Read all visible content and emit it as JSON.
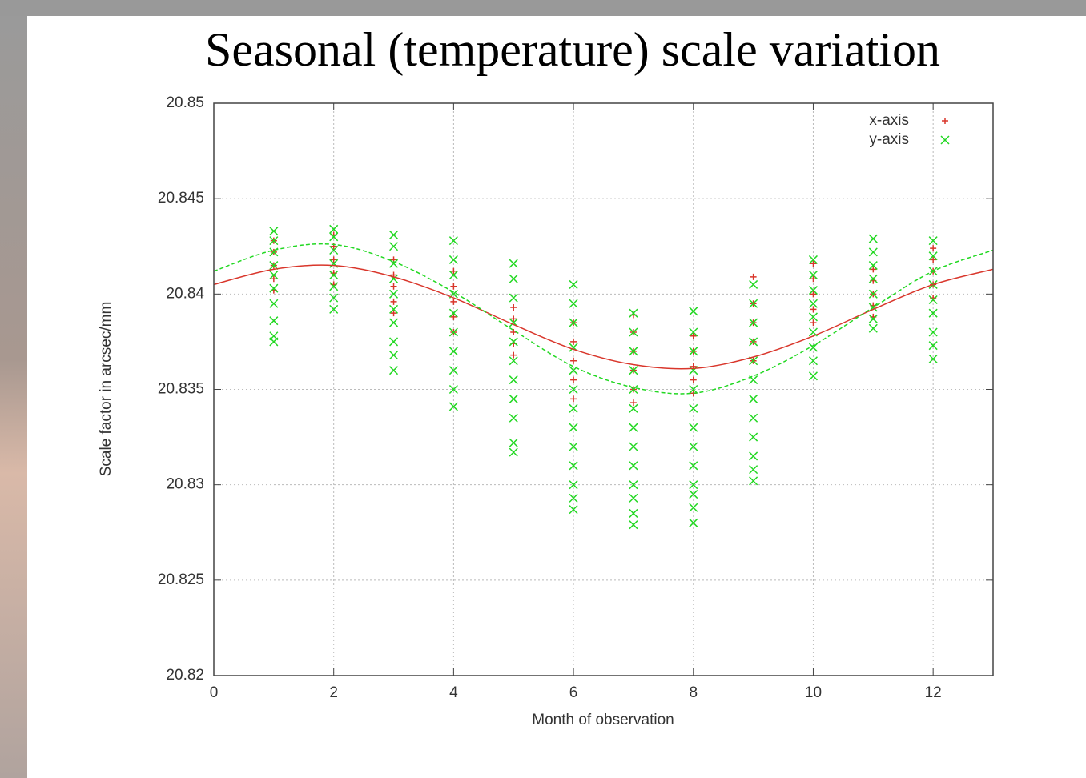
{
  "chart_data": {
    "type": "scatter",
    "title": "Seasonal (temperature) scale variation",
    "x_label": "Month of observation",
    "y_label": "Scale factor in arcsec/mm",
    "xlim": [
      0,
      13
    ],
    "xticks": [
      0,
      2,
      4,
      6,
      8,
      10,
      12
    ],
    "ylim": [
      20.82,
      20.85
    ],
    "yticks": [
      20.82,
      20.825,
      20.83,
      20.835,
      20.84,
      20.845,
      20.85
    ],
    "grid": true,
    "legend": "top-right",
    "series": [
      {
        "name": "x-axis",
        "color": "#d9362b",
        "marker": "plus",
        "x": [
          1,
          1,
          1,
          1,
          1,
          2,
          2,
          2,
          2,
          2,
          3,
          3,
          3,
          3,
          3,
          4,
          4,
          4,
          4,
          4,
          5,
          5,
          5,
          5,
          5,
          6,
          6,
          6,
          6,
          6,
          7,
          7,
          7,
          7,
          7,
          7,
          8,
          8,
          8,
          8,
          8,
          9,
          9,
          9,
          9,
          9,
          10,
          10,
          10,
          10,
          10,
          11,
          11,
          11,
          11,
          11,
          12,
          12,
          12,
          12,
          12
        ],
        "values": [
          20.8428,
          20.8422,
          20.8415,
          20.8408,
          20.8402,
          20.8431,
          20.8425,
          20.8418,
          20.8411,
          20.8405,
          20.8418,
          20.841,
          20.8404,
          20.8396,
          20.839,
          20.8412,
          20.8404,
          20.8396,
          20.8388,
          20.838,
          20.8393,
          20.8387,
          20.838,
          20.8374,
          20.8368,
          20.8385,
          20.8375,
          20.8365,
          20.8355,
          20.8345,
          20.8389,
          20.838,
          20.837,
          20.836,
          20.835,
          20.8343,
          20.8378,
          20.837,
          20.8362,
          20.8355,
          20.8348,
          20.8409,
          20.8395,
          20.8385,
          20.8375,
          20.8365,
          20.8416,
          20.8408,
          20.84,
          20.8392,
          20.8385,
          20.8413,
          20.8407,
          20.84,
          20.8394,
          20.8388,
          20.8424,
          20.8418,
          20.8412,
          20.8405,
          20.8398
        ]
      },
      {
        "name": "y-axis",
        "color": "#22d822",
        "marker": "cross",
        "x": [
          1,
          1,
          1,
          1,
          1,
          1,
          1,
          1,
          1,
          1,
          2,
          2,
          2,
          2,
          2,
          2,
          2,
          2,
          3,
          3,
          3,
          3,
          3,
          3,
          3,
          3,
          3,
          3,
          4,
          4,
          4,
          4,
          4,
          4,
          4,
          4,
          4,
          4,
          5,
          5,
          5,
          5,
          5,
          5,
          5,
          5,
          5,
          5,
          5,
          6,
          6,
          6,
          6,
          6,
          6,
          6,
          6,
          6,
          6,
          6,
          6,
          6,
          7,
          7,
          7,
          7,
          7,
          7,
          7,
          7,
          7,
          7,
          7,
          7,
          7,
          8,
          8,
          8,
          8,
          8,
          8,
          8,
          8,
          8,
          8,
          8,
          8,
          8,
          9,
          9,
          9,
          9,
          9,
          9,
          9,
          9,
          9,
          9,
          9,
          9,
          10,
          10,
          10,
          10,
          10,
          10,
          10,
          10,
          10,
          11,
          11,
          11,
          11,
          11,
          11,
          11,
          11,
          12,
          12,
          12,
          12,
          12,
          12,
          12,
          12,
          12
        ],
        "values": [
          20.8433,
          20.8428,
          20.8422,
          20.8415,
          20.841,
          20.8403,
          20.8395,
          20.8386,
          20.8378,
          20.8375,
          20.8434,
          20.843,
          20.8423,
          20.8416,
          20.841,
          20.8404,
          20.8398,
          20.8392,
          20.8431,
          20.8425,
          20.8416,
          20.8408,
          20.84,
          20.8392,
          20.8385,
          20.8375,
          20.8368,
          20.836,
          20.8428,
          20.8418,
          20.841,
          20.84,
          20.839,
          20.838,
          20.837,
          20.836,
          20.835,
          20.8341,
          20.8416,
          20.8408,
          20.8398,
          20.8385,
          20.8375,
          20.8365,
          20.8355,
          20.8345,
          20.8335,
          20.8322,
          20.8317,
          20.8405,
          20.8395,
          20.8385,
          20.8372,
          20.836,
          20.835,
          20.834,
          20.833,
          20.832,
          20.831,
          20.83,
          20.8293,
          20.8287,
          20.839,
          20.838,
          20.837,
          20.836,
          20.835,
          20.834,
          20.833,
          20.832,
          20.831,
          20.83,
          20.8293,
          20.8285,
          20.8279,
          20.8391,
          20.838,
          20.837,
          20.836,
          20.835,
          20.834,
          20.833,
          20.832,
          20.831,
          20.83,
          20.8295,
          20.8288,
          20.828,
          20.8405,
          20.8395,
          20.8385,
          20.8375,
          20.8365,
          20.8355,
          20.8345,
          20.8335,
          20.8325,
          20.8315,
          20.8308,
          20.8302,
          20.8418,
          20.841,
          20.8402,
          20.8395,
          20.8388,
          20.838,
          20.8372,
          20.8365,
          20.8357,
          20.8429,
          20.8422,
          20.8415,
          20.8408,
          20.84,
          20.8393,
          20.8387,
          20.8382,
          20.8428,
          20.842,
          20.8412,
          20.8405,
          20.8397,
          20.839,
          20.838,
          20.8373,
          20.8366
        ]
      }
    ],
    "fits": [
      {
        "color": "#d9362b",
        "dashed": false,
        "x": [
          0,
          1,
          2,
          3,
          4,
          5,
          6,
          7,
          8,
          9,
          10,
          11,
          12,
          13
        ],
        "values": [
          20.8405,
          20.8413,
          20.8415,
          20.8409,
          20.8398,
          20.8384,
          20.8371,
          20.8363,
          20.8361,
          20.8367,
          20.8378,
          20.8392,
          20.8405,
          20.8413
        ]
      },
      {
        "color": "#22d822",
        "dashed": true,
        "x": [
          0,
          1,
          2,
          3,
          4,
          5,
          6,
          7,
          8,
          9,
          10,
          11,
          12,
          13
        ],
        "values": [
          20.8412,
          20.8423,
          20.8426,
          20.8417,
          20.8401,
          20.8381,
          20.8362,
          20.8351,
          20.8348,
          20.8357,
          20.8373,
          20.8393,
          20.8412,
          20.8423
        ]
      }
    ]
  }
}
